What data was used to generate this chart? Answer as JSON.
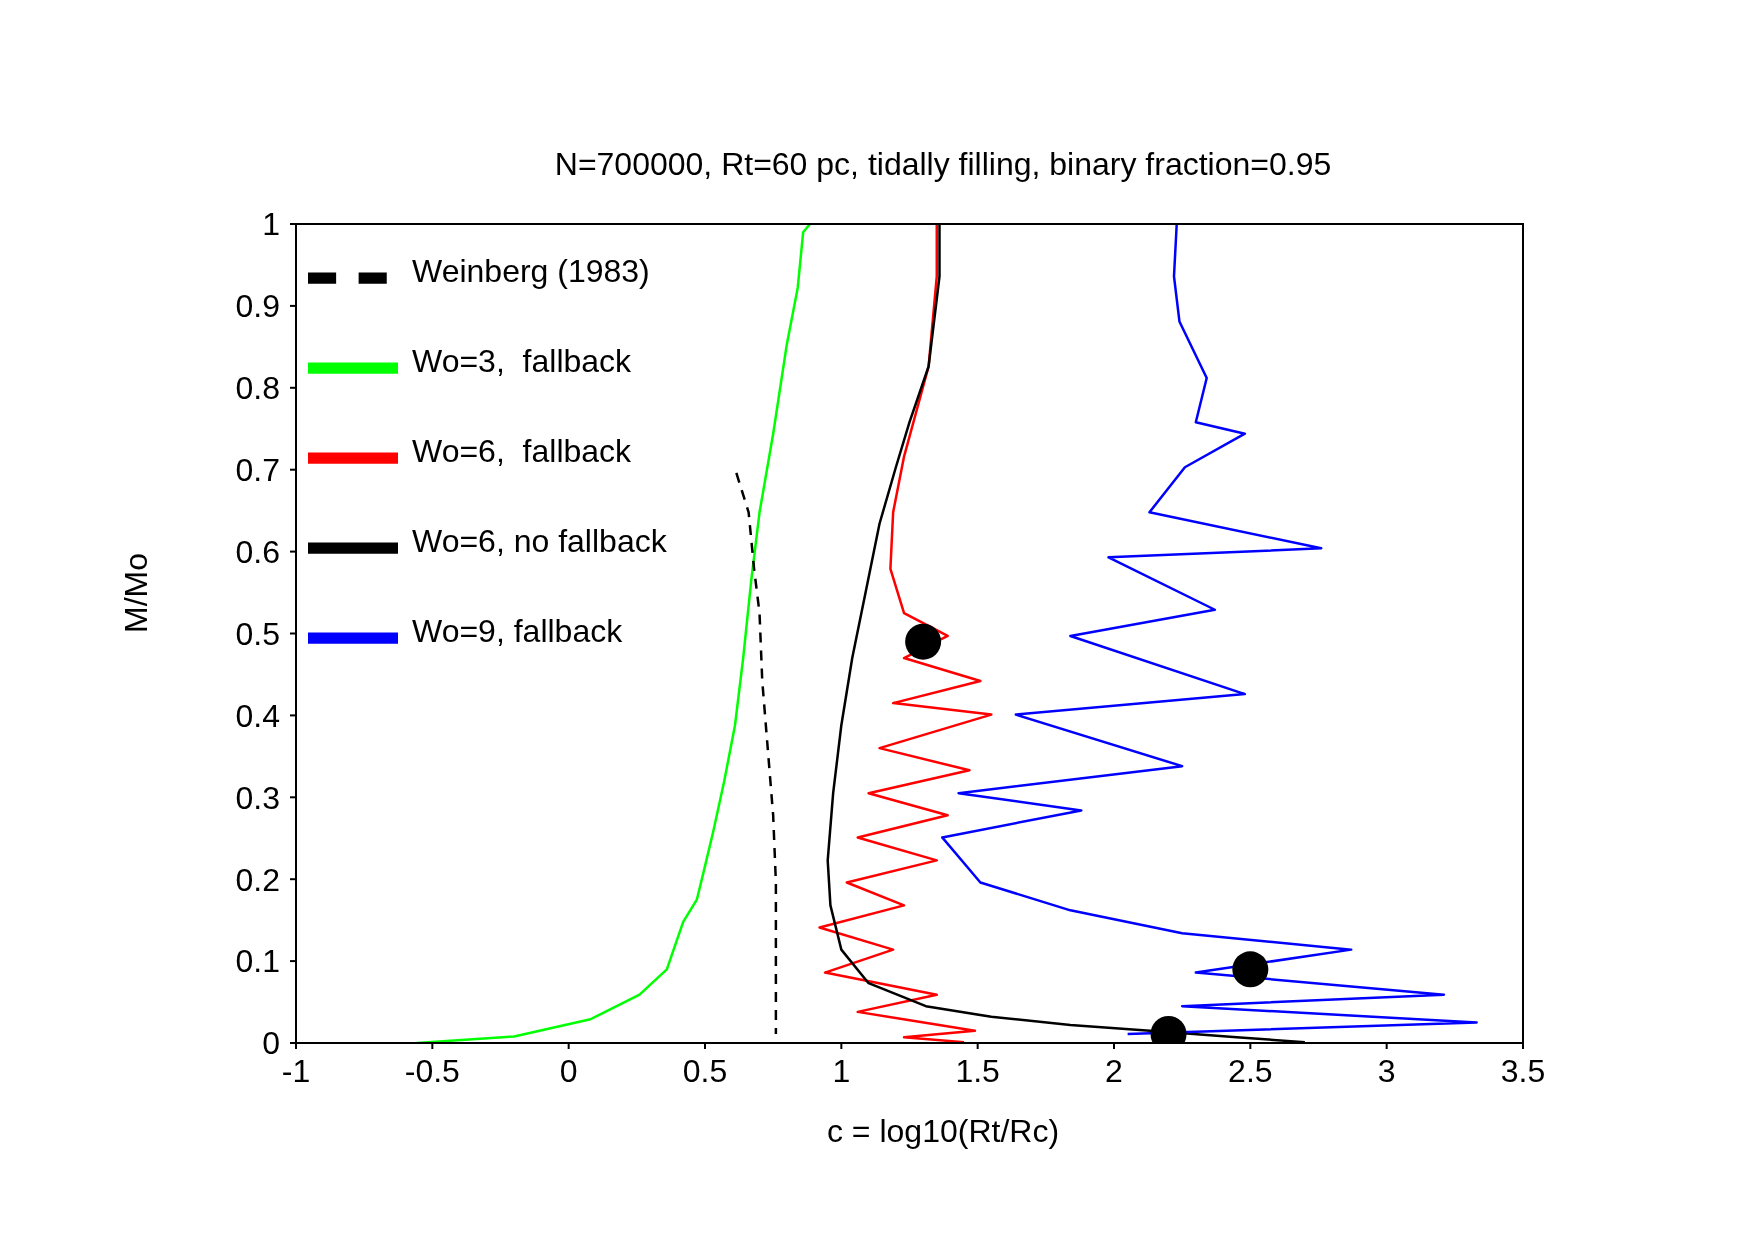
{
  "chart_data": {
    "type": "line",
    "title": "N=700000, Rt=60 pc, tidally filling, binary fraction=0.95",
    "xlabel": "c = log10(Rt/Rc)",
    "ylabel": "M/Mo",
    "xlim": [
      -1,
      3.5
    ],
    "xticks": [
      -1,
      -0.5,
      0,
      0.5,
      1,
      1.5,
      2,
      2.5,
      3,
      3.5
    ],
    "ylim": [
      0,
      1
    ],
    "yticks": [
      0,
      0.1,
      0.2,
      0.3,
      0.4,
      0.5,
      0.6,
      0.7,
      0.8,
      0.9,
      1
    ],
    "legend": "top left",
    "marker": "none",
    "series": [
      {
        "name": "Wo=3,  fallback",
        "color": "#00ff00",
        "x": [
          -0.557,
          -0.2,
          0.08,
          0.26,
          0.36,
          0.42,
          0.47,
          0.5,
          0.53,
          0.57,
          0.61,
          0.64,
          0.67,
          0.7,
          0.75,
          0.8,
          0.84,
          0.86,
          0.885
        ],
        "values": [
          0,
          0.008,
          0.029,
          0.059,
          0.09,
          0.148,
          0.175,
          0.216,
          0.258,
          0.319,
          0.388,
          0.47,
          0.566,
          0.648,
          0.744,
          0.853,
          0.922,
          0.99,
          1
        ]
      },
      {
        "name": "Wo=6,  fallback",
        "color": "#ff0000",
        "x": [
          1.35,
          1.35,
          1.32,
          1.23,
          1.19,
          1.18,
          1.23,
          1.39,
          1.23,
          1.51,
          1.19,
          1.55,
          1.14,
          1.47,
          1.1,
          1.39,
          1.06,
          1.35,
          1.02,
          1.23,
          0.92,
          1.19,
          0.94,
          1.35,
          1.06,
          1.49,
          1.23,
          1.45
        ],
        "values": [
          1,
          0.936,
          0.826,
          0.716,
          0.648,
          0.579,
          0.525,
          0.497,
          0.47,
          0.442,
          0.415,
          0.401,
          0.36,
          0.333,
          0.305,
          0.278,
          0.251,
          0.223,
          0.196,
          0.168,
          0.141,
          0.114,
          0.086,
          0.059,
          0.038,
          0.015,
          0.007,
          0.001
        ]
      },
      {
        "name": "Wo=6, no fallback",
        "color": "#000000",
        "x": [
          1.36,
          1.36,
          1.32,
          1.25,
          1.2,
          1.14,
          1.09,
          1.04,
          1.0,
          0.97,
          0.95,
          0.96,
          1.0,
          1.1,
          1.31,
          1.55,
          1.84,
          2.17,
          2.45,
          2.7
        ],
        "values": [
          1,
          0.936,
          0.826,
          0.758,
          0.703,
          0.634,
          0.552,
          0.47,
          0.388,
          0.305,
          0.223,
          0.168,
          0.114,
          0.073,
          0.045,
          0.032,
          0.022,
          0.014,
          0.007,
          0.001
        ]
      },
      {
        "name": "Wo=9, fallback",
        "color": "#0000ff",
        "x": [
          2.23,
          2.22,
          2.24,
          2.34,
          2.3,
          2.48,
          2.26,
          2.13,
          2.76,
          1.98,
          2.37,
          1.84,
          2.48,
          1.64,
          2.25,
          1.43,
          1.88,
          1.37,
          1.51,
          1.84,
          2.25,
          2.87,
          2.3,
          3.21,
          2.25,
          3.33,
          2.05
        ],
        "values": [
          1,
          0.936,
          0.881,
          0.812,
          0.758,
          0.744,
          0.703,
          0.648,
          0.604,
          0.593,
          0.529,
          0.497,
          0.426,
          0.401,
          0.338,
          0.305,
          0.284,
          0.251,
          0.196,
          0.162,
          0.134,
          0.114,
          0.086,
          0.059,
          0.045,
          0.025,
          0.011
        ]
      },
      {
        "name": "Weinberg (1983)",
        "color": "#000000",
        "line_style": "dashed",
        "x": [
          0.615,
          0.66,
          0.68,
          0.7,
          0.71,
          0.73,
          0.75,
          0.76,
          0.76
        ],
        "values": [
          0.696,
          0.648,
          0.579,
          0.525,
          0.442,
          0.36,
          0.278,
          0.196,
          0.011
        ]
      },
      {
        "type": "scatter",
        "color": "#000000",
        "marker": "circle",
        "x": [
          1.3,
          2.5,
          2.2
        ],
        "values": [
          0.49,
          0.09,
          0.011
        ]
      }
    ]
  }
}
